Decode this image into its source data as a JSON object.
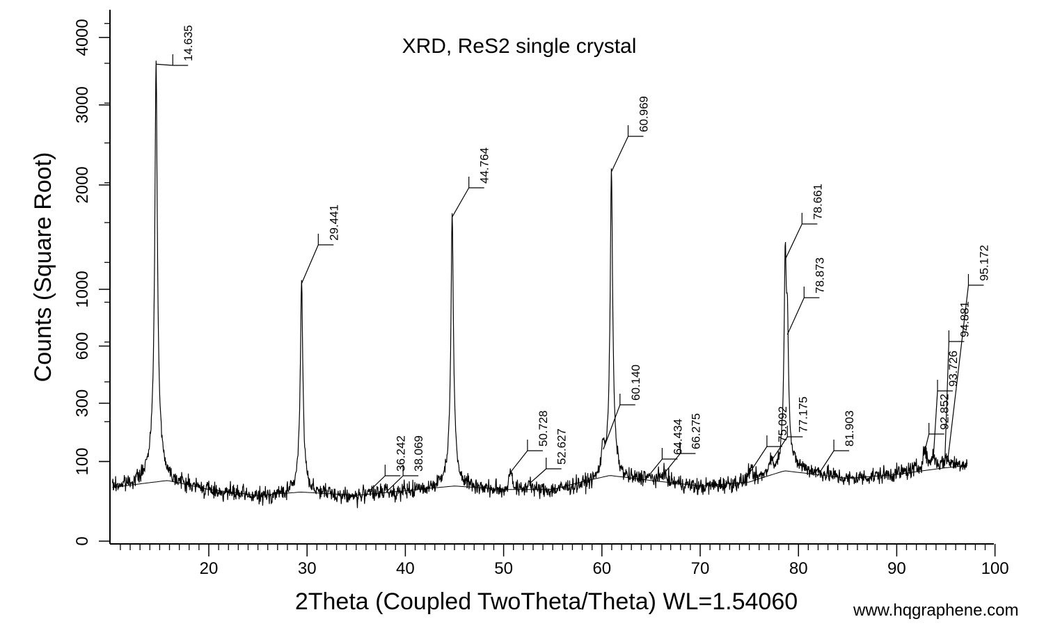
{
  "chart_data": {
    "type": "line",
    "title": "XRD, ReS2 single crystal",
    "xlabel": "2Theta (Coupled TwoTheta/Theta) WL=1.54060",
    "ylabel": "Counts (Square Root)",
    "y_scale": "sqrt",
    "xlim": [
      10,
      100
    ],
    "ylim": [
      0,
      4300
    ],
    "x_ticks": [
      20,
      30,
      40,
      50,
      60,
      70,
      80,
      90,
      100
    ],
    "y_ticks": [
      0,
      100,
      300,
      600,
      1000,
      2000,
      3000,
      4000
    ],
    "grid": false,
    "legend": "none",
    "baseline": [
      [
        10,
        45
      ],
      [
        15,
        58
      ],
      [
        20,
        40
      ],
      [
        25,
        30
      ],
      [
        30,
        38
      ],
      [
        35,
        30
      ],
      [
        40,
        38
      ],
      [
        45,
        50
      ],
      [
        50,
        38
      ],
      [
        55,
        40
      ],
      [
        60,
        55
      ],
      [
        65,
        60
      ],
      [
        70,
        45
      ],
      [
        75,
        55
      ],
      [
        80,
        82
      ],
      [
        85,
        60
      ],
      [
        90,
        72
      ],
      [
        95,
        92
      ],
      [
        97.2,
        95
      ]
    ],
    "background_hump": [
      [
        10,
        45
      ],
      [
        15.8,
        58
      ],
      [
        20,
        42
      ],
      [
        25,
        33
      ],
      [
        29.4,
        38
      ],
      [
        35,
        33
      ],
      [
        40,
        40
      ],
      [
        45,
        48
      ],
      [
        50,
        42
      ],
      [
        55,
        42
      ],
      [
        60.8,
        68
      ],
      [
        65,
        58
      ],
      [
        70,
        48
      ],
      [
        75,
        55
      ],
      [
        78.6,
        78
      ],
      [
        85,
        62
      ],
      [
        90,
        70
      ],
      [
        95,
        85
      ],
      [
        97.2,
        90
      ]
    ],
    "peaks": [
      {
        "x": 14.635,
        "label": "14.635",
        "height": 3650
      },
      {
        "x": 29.441,
        "label": "29.441",
        "height": 1080
      },
      {
        "x": 36.242,
        "label": "36.242",
        "height": 45
      },
      {
        "x": 38.069,
        "label": "38.069",
        "height": 45
      },
      {
        "x": 44.764,
        "label": "44.764",
        "height": 1700
      },
      {
        "x": 50.728,
        "label": "50.728",
        "height": 85
      },
      {
        "x": 52.627,
        "label": "52.627",
        "height": 60
      },
      {
        "x": 60.14,
        "label": "60.140",
        "height": 145
      },
      {
        "x": 60.969,
        "label": "60.969",
        "height": 2200
      },
      {
        "x": 64.434,
        "label": "64.434",
        "height": 68
      },
      {
        "x": 66.275,
        "label": "66.275",
        "height": 80
      },
      {
        "x": 75.092,
        "label": "75.092",
        "height": 85
      },
      {
        "x": 77.175,
        "label": "77.175",
        "height": 110
      },
      {
        "x": 78.661,
        "label": "78.661",
        "height": 1290
      },
      {
        "x": 78.873,
        "label": "78.873",
        "height": 700
      },
      {
        "x": 81.903,
        "label": "81.903",
        "height": 75
      },
      {
        "x": 92.852,
        "label": "92.852",
        "height": 140
      },
      {
        "x": 93.726,
        "label": "93.726",
        "height": 120
      },
      {
        "x": 94.881,
        "label": "94.881",
        "height": 100
      },
      {
        "x": 95.172,
        "label": "95.172",
        "height": 110
      }
    ]
  },
  "watermark": "www.hqgraphene.com"
}
